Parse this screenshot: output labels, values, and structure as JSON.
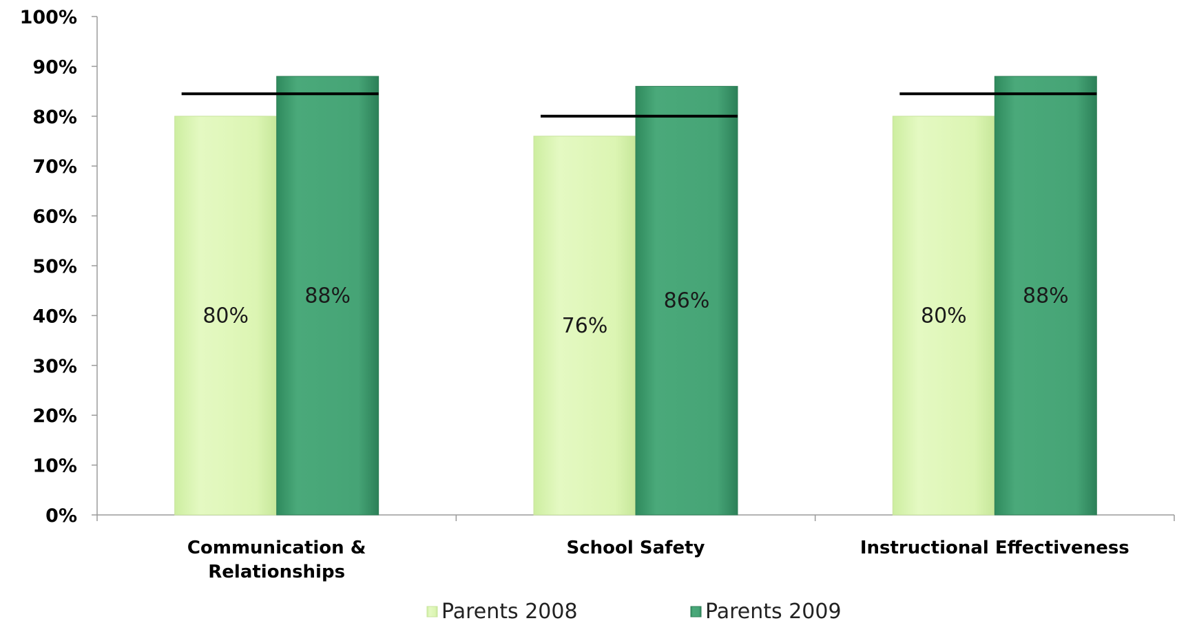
{
  "colors": {
    "series_2008": "#dcf5b3",
    "series_2009": "#47a577",
    "benchmark": "#000000",
    "axis": "#9a9a9a"
  },
  "chart_data": {
    "type": "bar",
    "categories": [
      [
        "Communication &",
        "Relationships"
      ],
      [
        "School Safety"
      ],
      [
        "Instructional Effectiveness"
      ]
    ],
    "series": [
      {
        "name": "Parents 2008",
        "values": [
          80,
          76,
          80
        ],
        "labels": [
          "80%",
          "76%",
          "80%"
        ]
      },
      {
        "name": "Parents 2009",
        "values": [
          88,
          86,
          88
        ],
        "labels": [
          "88%",
          "86%",
          "88%"
        ]
      }
    ],
    "benchmarks": [
      84.5,
      80,
      84.5
    ],
    "yticks": [
      "0%",
      "10%",
      "20%",
      "30%",
      "40%",
      "50%",
      "60%",
      "70%",
      "80%",
      "90%",
      "100%"
    ],
    "ylim": [
      0,
      100
    ],
    "legend_position": "bottom",
    "grid": false
  }
}
